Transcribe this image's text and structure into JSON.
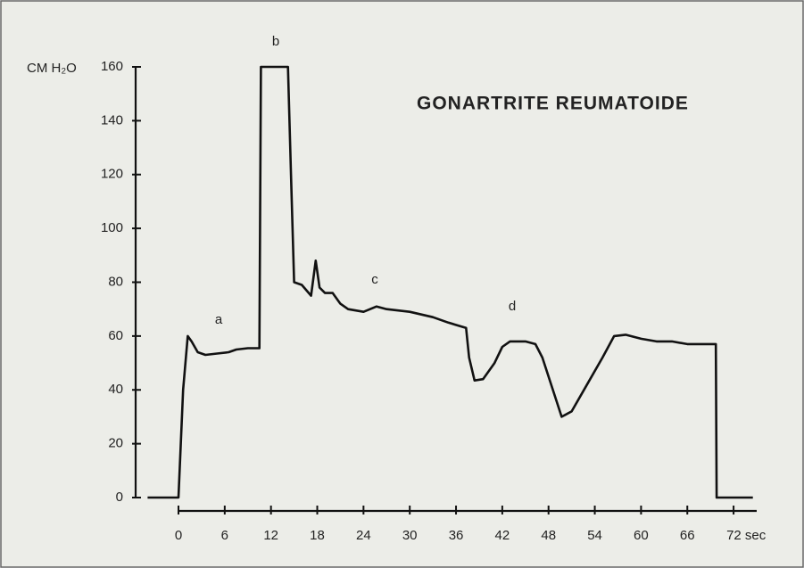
{
  "chart_data": {
    "type": "line",
    "title": "GONARTRITE REUMATOIDE",
    "y_label": "CM H₂O",
    "x": [
      -4,
      0,
      0.6,
      1.2,
      1.7,
      2.5,
      3.5,
      5,
      6.5,
      7.5,
      9,
      10.5,
      10.7,
      11.2,
      14.2,
      14.6,
      15,
      16,
      17.2,
      17.8,
      18.3,
      19,
      20,
      21,
      22,
      24,
      25.7,
      27,
      30,
      33,
      35,
      37.3,
      37.7,
      38.4,
      39.5,
      41,
      42,
      43,
      45,
      46.3,
      47.2,
      49.7,
      51,
      53,
      55,
      56.5,
      58,
      60,
      62,
      64,
      66,
      69.7,
      69.8,
      74.5
    ],
    "values": [
      0,
      0,
      40,
      60,
      58,
      54,
      53,
      53.5,
      54,
      55,
      55.5,
      55.5,
      160,
      160,
      160,
      120,
      80,
      79,
      75,
      88,
      78,
      76,
      76,
      72,
      70,
      69,
      71,
      70,
      69,
      67,
      65,
      63,
      52,
      43.5,
      44,
      50,
      56,
      58,
      58,
      57,
      52,
      30,
      32,
      42,
      52,
      60,
      60.5,
      59,
      58,
      58,
      57,
      57,
      0,
      0
    ],
    "color": "#111111",
    "xlim": [
      -4,
      75
    ],
    "xticks": [
      0,
      6,
      12,
      18,
      24,
      30,
      36,
      42,
      48,
      54,
      60,
      66,
      {
        "value": 72,
        "label": "72 sec"
      }
    ],
    "ylim": [
      0,
      160
    ],
    "yticks": [
      0,
      20,
      40,
      60,
      80,
      100,
      120,
      140,
      160
    ],
    "annotations": [
      "a",
      "b",
      "c",
      "d"
    ]
  }
}
